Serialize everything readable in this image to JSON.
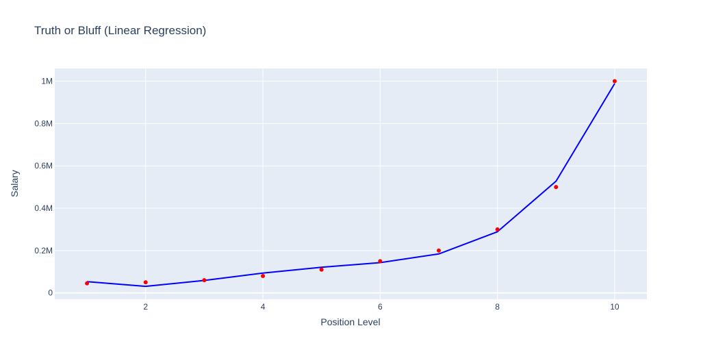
{
  "chart_data": {
    "type": "line",
    "title": "Truth or Bluff (Linear Regression)",
    "xlabel": "Position Level",
    "ylabel": "Salary",
    "xlim": [
      0.45,
      10.55
    ],
    "ylim": [
      -30000,
      1060000
    ],
    "x_ticks": [
      2,
      4,
      6,
      8,
      10
    ],
    "x_tick_labels": [
      "2",
      "4",
      "6",
      "8",
      "10"
    ],
    "y_ticks": [
      0,
      200000,
      400000,
      600000,
      800000,
      1000000
    ],
    "y_tick_labels": [
      "0",
      "0.2M",
      "0.4M",
      "0.6M",
      "0.8M",
      "1M"
    ],
    "grid": true,
    "colors": {
      "background": "#e5ecf6",
      "grid": "#ffffff",
      "points": "#ff0000",
      "line": "#0000ff",
      "text": "#2a3f5f"
    },
    "series": [
      {
        "mode": "markers",
        "x": [
          1,
          2,
          3,
          4,
          5,
          6,
          7,
          8,
          9,
          10
        ],
        "values": [
          45000,
          50000,
          60000,
          80000,
          110000,
          150000,
          200000,
          300000,
          500000,
          1000000
        ]
      },
      {
        "mode": "lines",
        "x": [
          1,
          2,
          3,
          4,
          5,
          6,
          7,
          8,
          9,
          10
        ],
        "values": [
          53000,
          31000,
          59000,
          94000,
          121000,
          143000,
          184000,
          289000,
          528000,
          989000
        ]
      }
    ]
  }
}
